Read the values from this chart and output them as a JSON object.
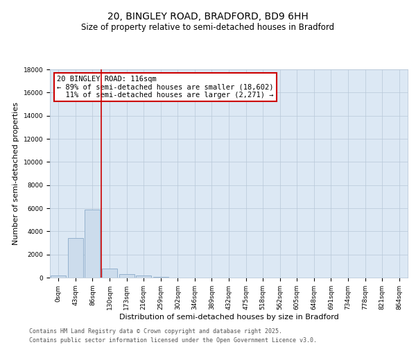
{
  "title_line1": "20, BINGLEY ROAD, BRADFORD, BD9 6HH",
  "title_line2": "Size of property relative to semi-detached houses in Bradford",
  "xlabel": "Distribution of semi-detached houses by size in Bradford",
  "ylabel": "Number of semi-detached properties",
  "categories": [
    "0sqm",
    "43sqm",
    "86sqm",
    "130sqm",
    "173sqm",
    "216sqm",
    "259sqm",
    "302sqm",
    "346sqm",
    "389sqm",
    "432sqm",
    "475sqm",
    "518sqm",
    "562sqm",
    "605sqm",
    "648sqm",
    "691sqm",
    "734sqm",
    "778sqm",
    "821sqm",
    "864sqm"
  ],
  "bar_values": [
    200,
    3400,
    5900,
    800,
    300,
    175,
    80,
    15,
    5,
    2,
    1,
    0,
    0,
    0,
    0,
    0,
    0,
    0,
    0,
    0,
    0
  ],
  "bar_color": "#ccdcec",
  "bar_edgecolor": "#8aaac8",
  "vline_color": "#cc0000",
  "annotation_line1": "20 BINGLEY ROAD: 116sqm",
  "annotation_line2": "← 89% of semi-detached houses are smaller (18,602)",
  "annotation_line3": "  11% of semi-detached houses are larger (2,271) →",
  "annotation_box_color": "#cc0000",
  "ylim": [
    0,
    18000
  ],
  "yticks": [
    0,
    2000,
    4000,
    6000,
    8000,
    10000,
    12000,
    14000,
    16000,
    18000
  ],
  "plot_bg_color": "#dce8f4",
  "footer_line1": "Contains HM Land Registry data © Crown copyright and database right 2025.",
  "footer_line2": "Contains public sector information licensed under the Open Government Licence v3.0.",
  "title_fontsize": 10,
  "subtitle_fontsize": 8.5,
  "axis_label_fontsize": 8,
  "tick_fontsize": 6.5,
  "annotation_fontsize": 7.5,
  "footer_fontsize": 6
}
